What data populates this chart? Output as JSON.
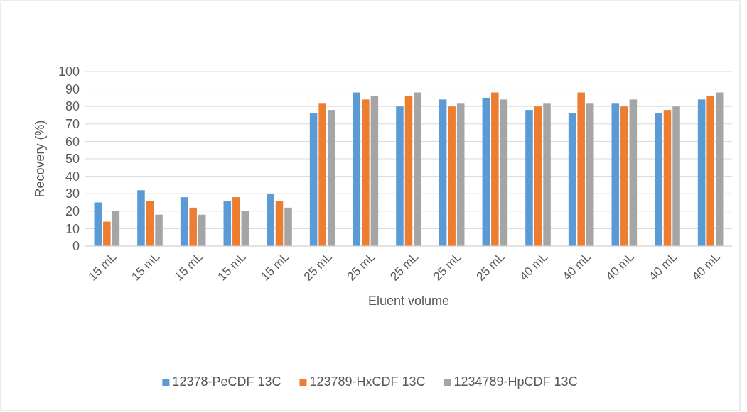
{
  "chart_data": {
    "type": "bar",
    "xlabel": "Eluent volume",
    "ylabel": "Recovery (%)",
    "categories": [
      "15 mL",
      "15 mL",
      "15 mL",
      "15 mL",
      "15 mL",
      "25 mL",
      "25 mL",
      "25 mL",
      "25 mL",
      "25 mL",
      "40 mL",
      "40 mL",
      "40 mL",
      "40 mL",
      "40 mL"
    ],
    "series": [
      {
        "name": "12378-PeCDF 13C",
        "color": "#5b9bd5",
        "values": [
          25,
          32,
          28,
          26,
          30,
          76,
          88,
          80,
          84,
          85,
          78,
          76,
          82,
          76,
          84
        ]
      },
      {
        "name": "123789-HxCDF 13C",
        "color": "#ed7d31",
        "values": [
          14,
          26,
          22,
          28,
          26,
          82,
          84,
          86,
          80,
          88,
          80,
          88,
          80,
          78,
          86
        ]
      },
      {
        "name": "1234789-HpCDF 13C",
        "color": "#a5a5a5",
        "values": [
          20,
          18,
          18,
          20,
          22,
          78,
          86,
          88,
          82,
          84,
          82,
          82,
          84,
          80,
          88
        ]
      }
    ],
    "ylim": [
      0,
      100
    ],
    "yticks": [
      0,
      10,
      20,
      30,
      40,
      50,
      60,
      70,
      80,
      90,
      100
    ],
    "grid": "y",
    "legend": "bottom"
  }
}
